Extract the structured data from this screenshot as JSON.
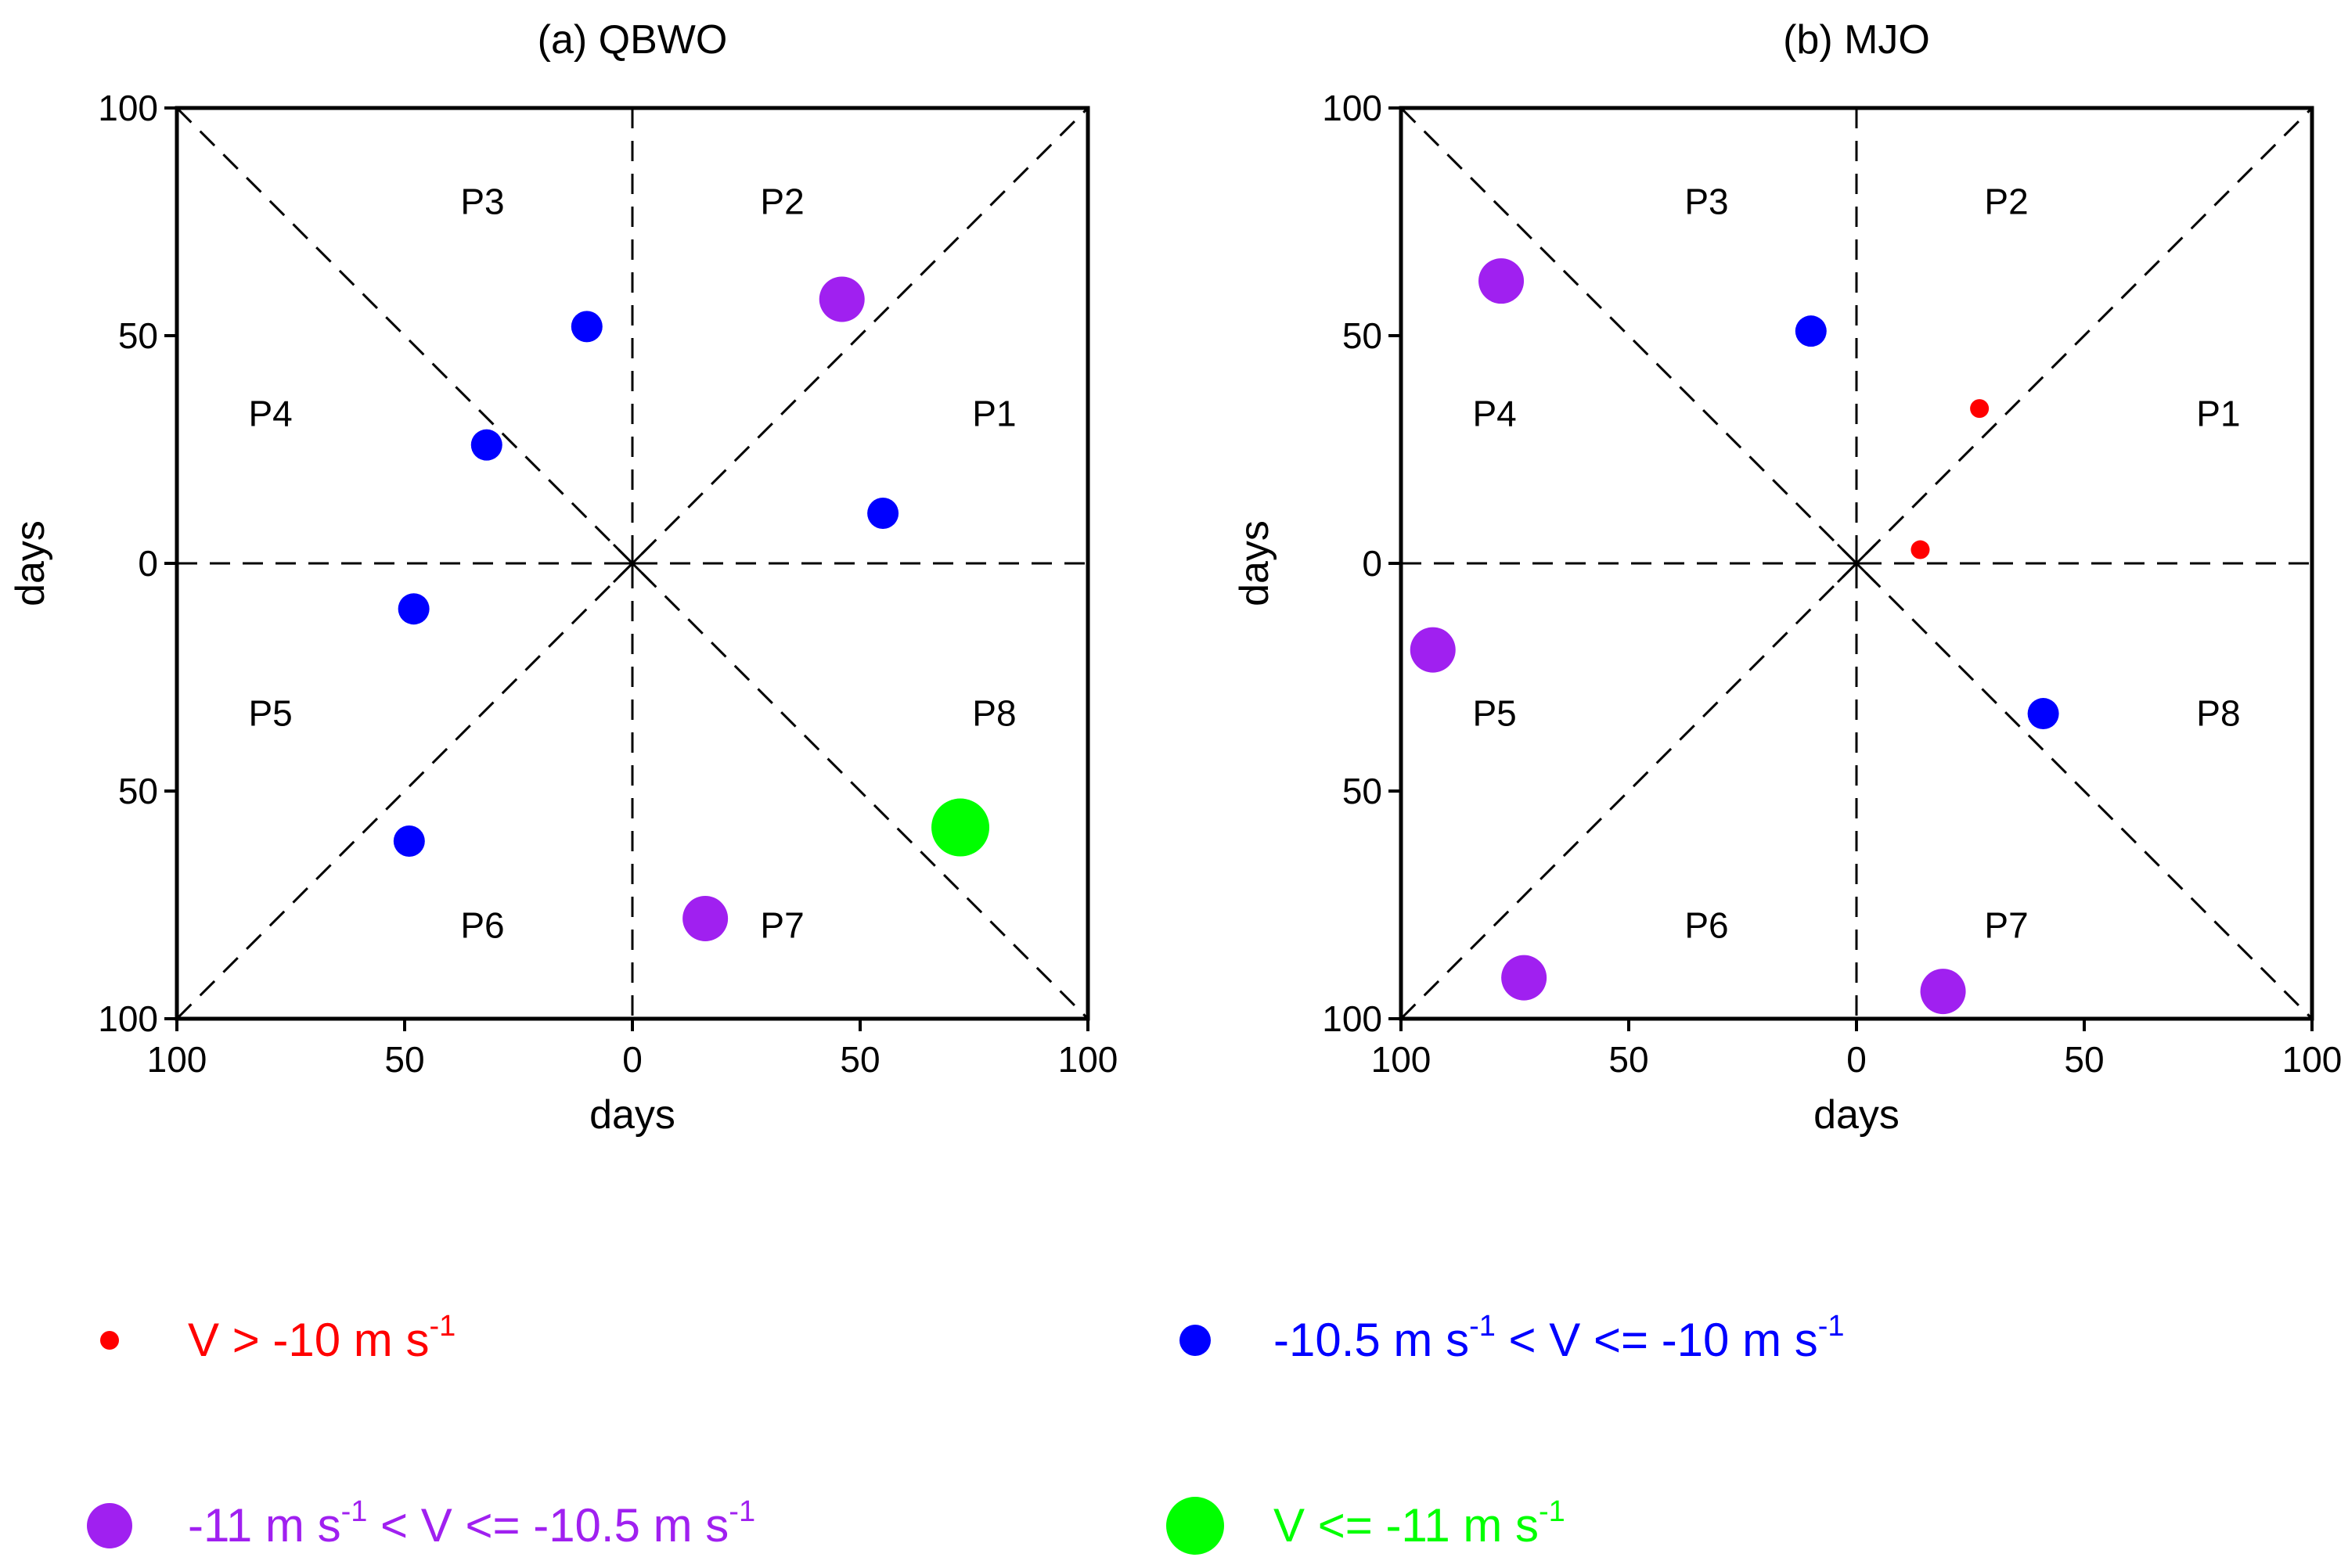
{
  "chart_data": [
    {
      "type": "scatter",
      "title": "(a) QBWO",
      "xlabel": "days",
      "ylabel": "days",
      "xlim": [
        -100,
        100
      ],
      "ylim": [
        -100,
        100
      ],
      "x_tick_labels": [
        "100",
        "50",
        "0",
        "50",
        "100"
      ],
      "y_tick_labels": [
        "100",
        "50",
        "0",
        "50",
        "100"
      ],
      "phase_labels": [
        "P1",
        "P2",
        "P3",
        "P4",
        "P5",
        "P6",
        "P7",
        "P8"
      ],
      "points": [
        {
          "x": -10,
          "y": 52,
          "class": 1
        },
        {
          "x": -32,
          "y": 26,
          "class": 1
        },
        {
          "x": 55,
          "y": 11,
          "class": 1
        },
        {
          "x": -48,
          "y": -10,
          "class": 1
        },
        {
          "x": -49,
          "y": -61,
          "class": 1
        },
        {
          "x": 46,
          "y": 58,
          "class": 2
        },
        {
          "x": 16,
          "y": -78,
          "class": 2
        },
        {
          "x": 72,
          "y": -58,
          "class": 3
        }
      ]
    },
    {
      "type": "scatter",
      "title": "(b) MJO",
      "xlabel": "days",
      "ylabel": "days",
      "xlim": [
        -100,
        100
      ],
      "ylim": [
        -100,
        100
      ],
      "x_tick_labels": [
        "100",
        "50",
        "0",
        "50",
        "100"
      ],
      "y_tick_labels": [
        "100",
        "50",
        "0",
        "50",
        "100"
      ],
      "phase_labels": [
        "P1",
        "P2",
        "P3",
        "P4",
        "P5",
        "P6",
        "P7",
        "P8"
      ],
      "points": [
        {
          "x": 27,
          "y": 34,
          "class": 0
        },
        {
          "x": 14,
          "y": 3,
          "class": 0
        },
        {
          "x": -10,
          "y": 51,
          "class": 1
        },
        {
          "x": 41,
          "y": -33,
          "class": 1
        },
        {
          "x": -78,
          "y": 62,
          "class": 2
        },
        {
          "x": -93,
          "y": -19,
          "class": 2
        },
        {
          "x": -73,
          "y": -91,
          "class": 2
        },
        {
          "x": 19,
          "y": -94,
          "class": 2
        }
      ]
    }
  ],
  "legend": [
    {
      "pre": "V > -10 m s",
      "sup1": "-1",
      "mid": "",
      "sup2": "",
      "post": "",
      "color": "#ff0000"
    },
    {
      "pre": "-10.5 m s",
      "sup1": "-1",
      "mid": " < V <= -10 m s",
      "sup2": "-1",
      "post": "",
      "color": "#0000ff"
    },
    {
      "pre": "-11 m s",
      "sup1": "-1",
      "mid": " < V <= -10.5 m s",
      "sup2": "-1",
      "post": "",
      "color": "#a020f0"
    },
    {
      "pre": "V <= -11 m s",
      "sup1": "-1",
      "mid": "",
      "sup2": "",
      "post": "",
      "color": "#00ff00"
    }
  ]
}
